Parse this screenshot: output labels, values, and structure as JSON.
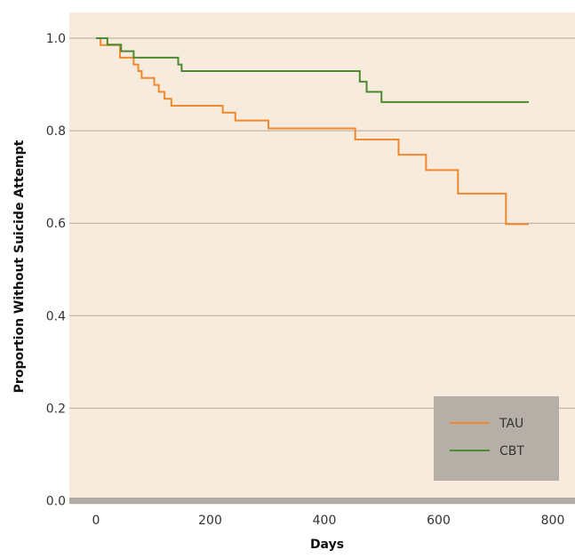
{
  "chart_data": {
    "type": "line",
    "step": true,
    "title": "",
    "xlabel": "Days",
    "ylabel": "Proportion Without Suicide Attempt",
    "xlim": [
      -50,
      800
    ],
    "ylim": [
      0.0,
      1.05
    ],
    "x_ticks": [
      0,
      200,
      400,
      600,
      800
    ],
    "y_ticks": [
      0.0,
      0.2,
      0.4,
      0.6,
      0.8,
      1.0
    ],
    "x_tick_labels": [
      "0",
      "200",
      "400",
      "600",
      "800"
    ],
    "y_tick_labels": [
      "0.0",
      "0.2",
      "0.4",
      "0.6",
      "0.8",
      "1.0"
    ],
    "grid": "horizontal",
    "legend_position": "bottom-right",
    "colors": {
      "background": "#f6ebdd",
      "grid": "#b6aa98",
      "baseline": "#b2aca6",
      "legend_box": "#b6afa8"
    },
    "series": [
      {
        "name": "TAU",
        "color": "#f0882e",
        "x": [
          0,
          8,
          20,
          42,
          60,
          66,
          74,
          80,
          96,
          102,
          110,
          120,
          132,
          222,
          244,
          302,
          382,
          454,
          530,
          578,
          634,
          718,
          758
        ],
        "y": [
          1.0,
          0.985,
          0.985,
          0.958,
          0.958,
          0.943,
          0.929,
          0.914,
          0.914,
          0.899,
          0.884,
          0.869,
          0.854,
          0.839,
          0.822,
          0.805,
          0.805,
          0.781,
          0.748,
          0.715,
          0.664,
          0.598,
          0.598
        ]
      },
      {
        "name": "CBT",
        "color": "#4c8a2f",
        "x": [
          0,
          20,
          44,
          66,
          144,
          150,
          200,
          400,
          462,
          474,
          500,
          520,
          758
        ],
        "y": [
          1.0,
          0.986,
          0.972,
          0.958,
          0.943,
          0.929,
          0.929,
          0.929,
          0.906,
          0.884,
          0.862,
          0.862,
          0.862
        ]
      }
    ]
  }
}
